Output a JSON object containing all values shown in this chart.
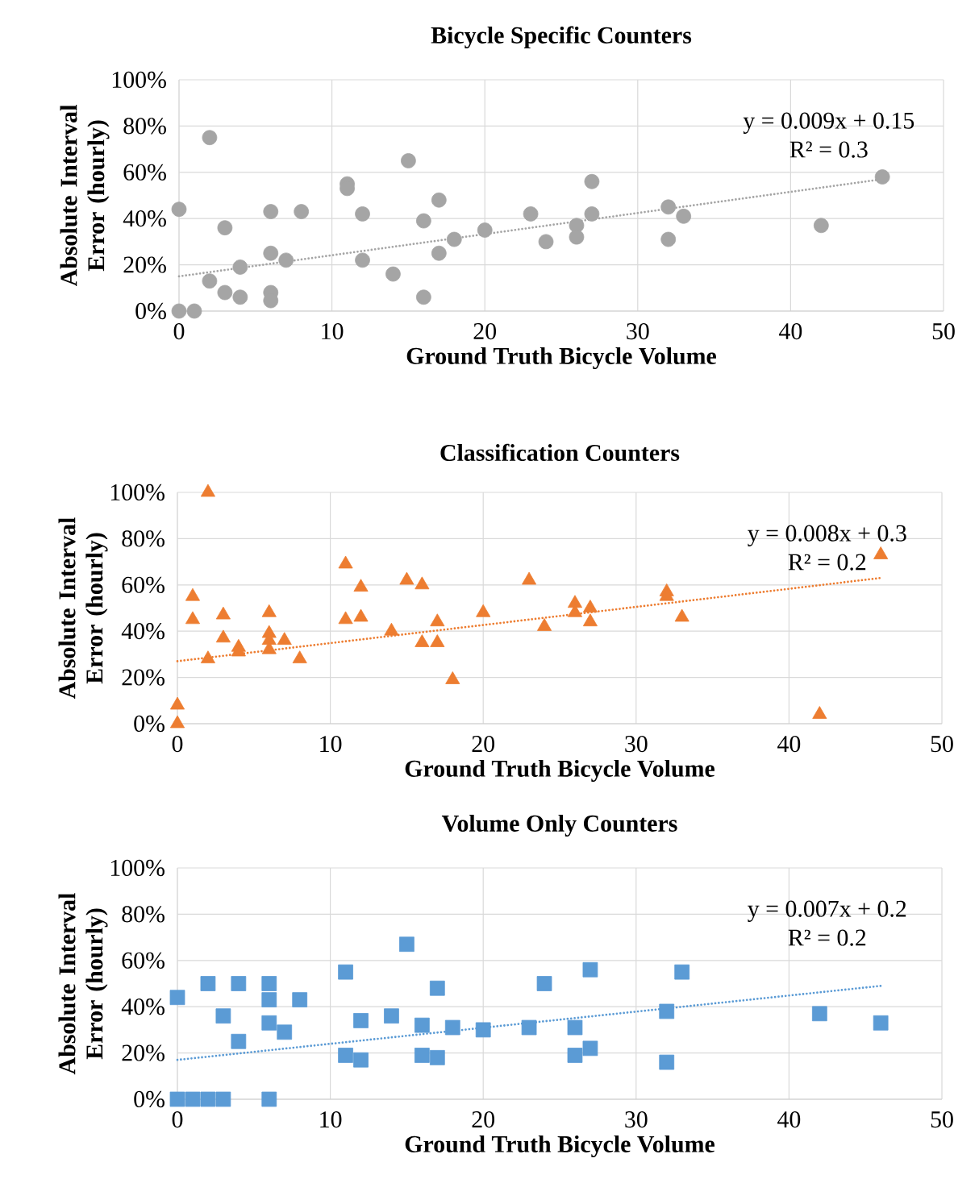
{
  "chart_data": [
    {
      "type": "scatter",
      "title": "Bicycle Specific Counters",
      "xlabel": "Ground Truth Bicycle Volume",
      "ylabel": "Absolute Interval Error (hourly)",
      "xlim": [
        0,
        50
      ],
      "xticks": [
        0,
        10,
        20,
        30,
        40,
        50
      ],
      "ylim": [
        0,
        1
      ],
      "yticks": [
        {
          "value": 0,
          "label": "0%"
        },
        {
          "value": 0.2,
          "label": "20%"
        },
        {
          "value": 0.4,
          "label": "40%"
        },
        {
          "value": 0.6,
          "label": "60%"
        },
        {
          "value": 0.8,
          "label": "80%"
        },
        {
          "value": 1,
          "label": "100%"
        }
      ],
      "grid": true,
      "series": [
        {
          "marker": "circle",
          "color": "#a5a5a5",
          "x": [
            0,
            0,
            1,
            2,
            2,
            3,
            3,
            4,
            4,
            6,
            6,
            6,
            6,
            7,
            8,
            11,
            11,
            12,
            12,
            14,
            15,
            16,
            16,
            17,
            17,
            18,
            20,
            23,
            24,
            26,
            26,
            27,
            27,
            32,
            32,
            33,
            42,
            46
          ],
          "values": [
            0.44,
            0,
            0,
            0.75,
            0.13,
            0.36,
            0.08,
            0.19,
            0.06,
            0.43,
            0.25,
            0.08,
            0.045,
            0.22,
            0.43,
            0.55,
            0.53,
            0.42,
            0.22,
            0.16,
            0.65,
            0.39,
            0.06,
            0.48,
            0.25,
            0.31,
            0.35,
            0.42,
            0.3,
            0.37,
            0.32,
            0.56,
            0.42,
            0.45,
            0.31,
            0.41,
            0.37,
            0.58
          ]
        },
        {
          "type": "line",
          "marker": "none",
          "line_style": "dotted",
          "color": "#a5a5a5",
          "x": [
            0,
            46
          ],
          "values": [
            0.15,
            0.57
          ]
        }
      ],
      "annotations": [
        "y = 0.009x + 0.15",
        "R² = 0.3"
      ]
    },
    {
      "type": "scatter",
      "title": "Classification Counters",
      "xlabel": "Ground Truth Bicycle Volume",
      "ylabel": "Absolute Interval Error (hourly)",
      "xlim": [
        0,
        50
      ],
      "xticks": [
        0,
        10,
        20,
        30,
        40,
        50
      ],
      "ylim": [
        0,
        1
      ],
      "yticks": [
        {
          "value": 0,
          "label": "0%"
        },
        {
          "value": 0.2,
          "label": "20%"
        },
        {
          "value": 0.4,
          "label": "40%"
        },
        {
          "value": 0.6,
          "label": "60%"
        },
        {
          "value": 0.8,
          "label": "80%"
        },
        {
          "value": 1,
          "label": "100%"
        }
      ],
      "grid": true,
      "series": [
        {
          "marker": "triangle",
          "color": "#ed7d31",
          "x": [
            0,
            0,
            1,
            1,
            2,
            2,
            3,
            3,
            4,
            4,
            6,
            6,
            6,
            6,
            7,
            8,
            11,
            11,
            12,
            12,
            14,
            15,
            16,
            16,
            17,
            17,
            18,
            20,
            23,
            24,
            26,
            26,
            27,
            27,
            32,
            32,
            33,
            42,
            46
          ],
          "values": [
            0.08,
            0,
            0.55,
            0.45,
            1,
            0.28,
            0.47,
            0.37,
            0.33,
            0.31,
            0.48,
            0.39,
            0.36,
            0.32,
            0.36,
            0.28,
            0.69,
            0.45,
            0.59,
            0.46,
            0.4,
            0.62,
            0.6,
            0.35,
            0.44,
            0.35,
            0.19,
            0.48,
            0.62,
            0.42,
            0.52,
            0.48,
            0.5,
            0.44,
            0.57,
            0.55,
            0.46,
            0.04,
            0.73
          ]
        },
        {
          "type": "line",
          "marker": "none",
          "line_style": "dotted",
          "color": "#ed7d31",
          "x": [
            0,
            46
          ],
          "values": [
            0.27,
            0.63
          ]
        }
      ],
      "annotations": [
        "y = 0.008x + 0.3",
        "R² = 0.2"
      ]
    },
    {
      "type": "scatter",
      "title": "Volume Only Counters",
      "xlabel": "Ground Truth Bicycle Volume",
      "ylabel": "Absolute Interval Error (hourly)",
      "xlim": [
        0,
        50
      ],
      "xticks": [
        0,
        10,
        20,
        30,
        40,
        50
      ],
      "ylim": [
        0,
        1
      ],
      "yticks": [
        {
          "value": 0,
          "label": "0%"
        },
        {
          "value": 0.2,
          "label": "20%"
        },
        {
          "value": 0.4,
          "label": "40%"
        },
        {
          "value": 0.6,
          "label": "60%"
        },
        {
          "value": 0.8,
          "label": "80%"
        },
        {
          "value": 1,
          "label": "100%"
        }
      ],
      "grid": true,
      "series": [
        {
          "marker": "square",
          "color": "#5b9bd5",
          "x": [
            0,
            0,
            1,
            2,
            3,
            6,
            2,
            3,
            4,
            4,
            6,
            6,
            6,
            7,
            8,
            11,
            11,
            12,
            12,
            14,
            15,
            16,
            16,
            17,
            17,
            18,
            20,
            23,
            24,
            26,
            26,
            27,
            27,
            32,
            32,
            33,
            42,
            46
          ],
          "values": [
            0.44,
            0,
            0,
            0,
            0,
            0,
            0.5,
            0.36,
            0.5,
            0.25,
            0.5,
            0.43,
            0.33,
            0.29,
            0.43,
            0.55,
            0.19,
            0.34,
            0.17,
            0.36,
            0.67,
            0.32,
            0.19,
            0.48,
            0.18,
            0.31,
            0.3,
            0.31,
            0.5,
            0.31,
            0.19,
            0.56,
            0.22,
            0.38,
            0.16,
            0.55,
            0.37,
            0.33
          ]
        },
        {
          "type": "line",
          "marker": "none",
          "line_style": "dotted",
          "color": "#5b9bd5",
          "x": [
            0,
            46
          ],
          "values": [
            0.17,
            0.49
          ]
        }
      ],
      "annotations": [
        "y = 0.007x + 0.2",
        "R² = 0.2"
      ]
    }
  ]
}
